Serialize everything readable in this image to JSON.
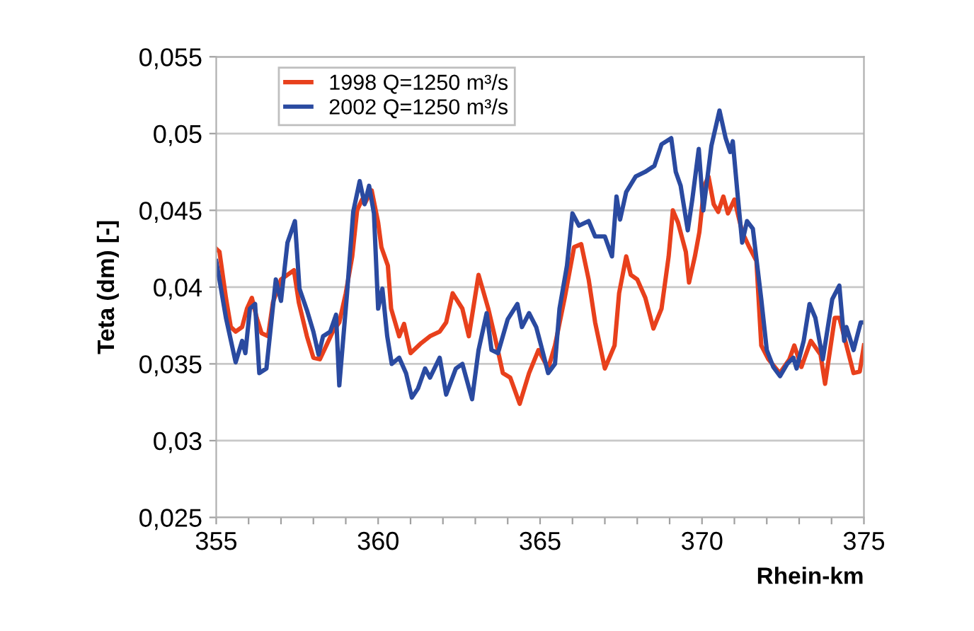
{
  "chart_data": {
    "type": "line",
    "xlabel": "Rhein-km",
    "ylabel": "Teta (dm) [-]",
    "xlim": [
      355,
      375
    ],
    "ylim": [
      0.025,
      0.055
    ],
    "xticks": [
      355,
      {
        "value": 356,
        "label": null
      },
      {
        "value": 357,
        "label": null
      },
      {
        "value": 358,
        "label": null
      },
      {
        "value": 359,
        "label": null
      },
      360,
      {
        "value": 361,
        "label": null
      },
      {
        "value": 362,
        "label": null
      },
      {
        "value": 363,
        "label": null
      },
      {
        "value": 364,
        "label": null
      },
      365,
      {
        "value": 366,
        "label": null
      },
      {
        "value": 367,
        "label": null
      },
      {
        "value": 368,
        "label": null
      },
      {
        "value": 369,
        "label": null
      },
      370,
      {
        "value": 371,
        "label": null
      },
      {
        "value": 372,
        "label": null
      },
      {
        "value": 373,
        "label": null
      },
      {
        "value": 374,
        "label": null
      },
      375
    ],
    "yticks": [
      {
        "value": 0.025,
        "label": "0,025"
      },
      {
        "value": 0.03,
        "label": "0,03"
      },
      {
        "value": 0.035,
        "label": "0,035"
      },
      {
        "value": 0.04,
        "label": "0,04"
      },
      {
        "value": 0.045,
        "label": "0,045"
      },
      {
        "value": 0.05,
        "label": "0,05"
      },
      {
        "value": 0.055,
        "label": "0,055"
      }
    ],
    "grid": "y",
    "legend": "top left",
    "marker": "none",
    "line_style": "solid",
    "series": [
      {
        "name": "1998 Q=1250 m³/s",
        "color": "#e8401c",
        "x": [
          355,
          355.1,
          355.3,
          355.45,
          355.6,
          355.8,
          355.95,
          356.1,
          356.25,
          356.4,
          356.6,
          356.75,
          357.0,
          357.2,
          357.4,
          357.55,
          357.8,
          358.0,
          358.2,
          358.4,
          358.6,
          358.8,
          359.0,
          359.2,
          359.35,
          359.5,
          359.6,
          359.8,
          360.0,
          360.1,
          360.3,
          360.4,
          360.65,
          360.8,
          361.0,
          361.3,
          361.6,
          361.9,
          362.1,
          362.3,
          362.6,
          362.8,
          363.1,
          363.4,
          363.6,
          363.85,
          364.08,
          364.37,
          364.66,
          364.95,
          365.25,
          365.46,
          365.76,
          366.05,
          366.27,
          366.5,
          366.7,
          367.0,
          367.3,
          367.44,
          367.66,
          367.8,
          368.0,
          368.25,
          368.5,
          368.75,
          368.97,
          369.1,
          369.26,
          369.5,
          369.6,
          369.78,
          369.92,
          370.07,
          370.2,
          370.36,
          370.5,
          370.66,
          370.8,
          371.0,
          371.24,
          371.46,
          371.68,
          371.83,
          372.05,
          372.4,
          372.7,
          372.85,
          373.07,
          373.36,
          373.66,
          373.8,
          374.1,
          374.24,
          374.46,
          374.68,
          374.87,
          375.0
        ],
        "values": [
          0.0425,
          0.0423,
          0.0393,
          0.0374,
          0.0371,
          0.0374,
          0.0386,
          0.0393,
          0.038,
          0.037,
          0.0368,
          0.039,
          0.0405,
          0.0408,
          0.0411,
          0.039,
          0.0368,
          0.0354,
          0.0353,
          0.0362,
          0.0371,
          0.0377,
          0.0396,
          0.042,
          0.045,
          0.0457,
          0.0455,
          0.0463,
          0.0442,
          0.0426,
          0.0414,
          0.0386,
          0.0368,
          0.0376,
          0.0357,
          0.0363,
          0.0368,
          0.0371,
          0.0377,
          0.0396,
          0.0386,
          0.0368,
          0.0408,
          0.0386,
          0.0368,
          0.0344,
          0.0341,
          0.0324,
          0.0344,
          0.0359,
          0.0347,
          0.0362,
          0.0393,
          0.0426,
          0.0428,
          0.0405,
          0.0377,
          0.0347,
          0.0362,
          0.0396,
          0.042,
          0.0408,
          0.0405,
          0.0393,
          0.0373,
          0.0386,
          0.042,
          0.045,
          0.0442,
          0.0423,
          0.0403,
          0.042,
          0.0436,
          0.0466,
          0.0472,
          0.0454,
          0.0449,
          0.0459,
          0.0448,
          0.0457,
          0.0436,
          0.0426,
          0.0417,
          0.0362,
          0.0353,
          0.0344,
          0.0353,
          0.0362,
          0.0348,
          0.0365,
          0.0356,
          0.0337,
          0.038,
          0.038,
          0.0362,
          0.0344,
          0.0345,
          0.0362
        ]
      },
      {
        "name": "2002 Q=1250 m³/s",
        "color": "#2a4aa0",
        "x": [
          355,
          355.3,
          355.6,
          355.8,
          355.9,
          356.04,
          356.2,
          356.33,
          356.55,
          356.84,
          357.0,
          357.2,
          357.43,
          357.57,
          357.8,
          358.0,
          358.16,
          358.3,
          358.52,
          358.7,
          358.8,
          359.04,
          359.23,
          359.43,
          359.58,
          359.72,
          359.87,
          360.0,
          360.13,
          360.28,
          360.42,
          360.65,
          360.86,
          361.04,
          361.23,
          361.45,
          361.6,
          361.9,
          362.1,
          362.4,
          362.6,
          362.9,
          363.1,
          363.35,
          363.5,
          363.7,
          364.0,
          364.3,
          364.44,
          364.66,
          364.88,
          365.03,
          365.25,
          365.46,
          365.6,
          365.83,
          366.0,
          366.2,
          366.5,
          366.7,
          367.0,
          367.22,
          367.36,
          367.47,
          367.66,
          367.95,
          368.24,
          368.53,
          368.75,
          369.05,
          369.19,
          369.34,
          369.56,
          369.7,
          369.9,
          370.04,
          370.29,
          370.54,
          370.73,
          370.87,
          370.95,
          371.1,
          371.24,
          371.39,
          371.57,
          371.83,
          372.0,
          372.2,
          372.41,
          372.63,
          372.82,
          372.92,
          373.14,
          373.32,
          373.5,
          373.73,
          374.02,
          374.24,
          374.39,
          374.46,
          374.68,
          374.9,
          375.0
        ],
        "values": [
          0.0417,
          0.038,
          0.0351,
          0.0365,
          0.0357,
          0.0386,
          0.0389,
          0.0344,
          0.0347,
          0.0405,
          0.0391,
          0.0429,
          0.0443,
          0.0399,
          0.0385,
          0.0371,
          0.0356,
          0.0368,
          0.0371,
          0.0382,
          0.0336,
          0.0396,
          0.0449,
          0.0469,
          0.0454,
          0.0466,
          0.0448,
          0.0386,
          0.0399,
          0.0368,
          0.035,
          0.0354,
          0.0344,
          0.0328,
          0.0334,
          0.0347,
          0.0341,
          0.0354,
          0.033,
          0.0347,
          0.035,
          0.0327,
          0.0359,
          0.0383,
          0.0359,
          0.0357,
          0.0379,
          0.0389,
          0.0374,
          0.0383,
          0.0374,
          0.0362,
          0.0344,
          0.035,
          0.0386,
          0.0414,
          0.0448,
          0.044,
          0.0443,
          0.0433,
          0.0433,
          0.042,
          0.0459,
          0.0444,
          0.0462,
          0.0472,
          0.0475,
          0.0479,
          0.0493,
          0.0497,
          0.0475,
          0.0466,
          0.0437,
          0.0457,
          0.049,
          0.045,
          0.0492,
          0.0515,
          0.0497,
          0.0488,
          0.0495,
          0.046,
          0.0429,
          0.0443,
          0.0438,
          0.0392,
          0.0359,
          0.0348,
          0.0342,
          0.035,
          0.0354,
          0.0347,
          0.0365,
          0.0389,
          0.038,
          0.0353,
          0.0392,
          0.0401,
          0.0365,
          0.0374,
          0.0359,
          0.0377,
          0.0377
        ]
      }
    ]
  }
}
